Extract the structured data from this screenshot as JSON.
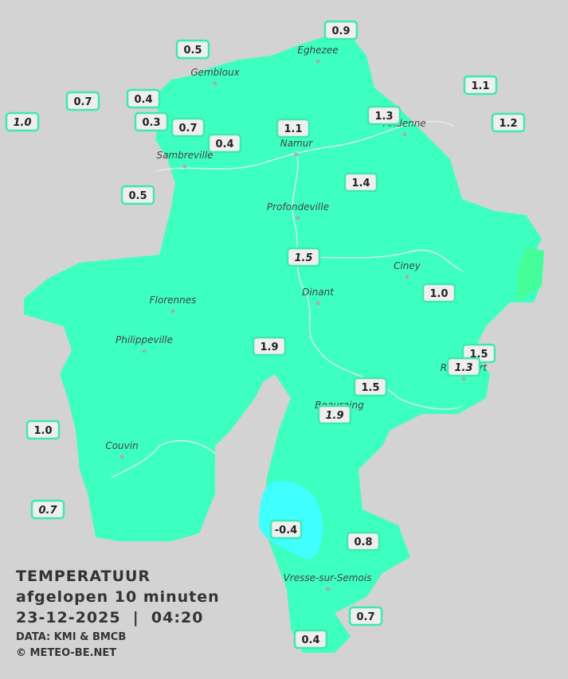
{
  "legend": {
    "title": "TEMPERATUUR",
    "subtitle": "afgelopen 10 minuten",
    "timestamp": "23-12-2025  |  04:20",
    "credits": [
      "DATA: KMI & BMCB",
      "© METEO-BE.NET"
    ]
  },
  "places": [
    "Eghezee",
    "Gembloux",
    "Andenne",
    "Namur",
    "Sambreville",
    "Profondeville",
    "Ciney",
    "Dinant",
    "Florennes",
    "Philippeville",
    "Rochefort",
    "Beauraing",
    "Couvin",
    "Vresse-sur-Semois"
  ],
  "readings": [
    {
      "text": "0.9",
      "italic": false
    },
    {
      "text": "0.5",
      "italic": false
    },
    {
      "text": "1.1",
      "italic": false
    },
    {
      "text": "0.7",
      "italic": false
    },
    {
      "text": "0.4",
      "italic": false
    },
    {
      "text": "1.3",
      "italic": false
    },
    {
      "text": "1.0",
      "italic": true
    },
    {
      "text": "0.3",
      "italic": false
    },
    {
      "text": "0.7",
      "italic": false
    },
    {
      "text": "1.1",
      "italic": false
    },
    {
      "text": "1.2",
      "italic": false
    },
    {
      "text": "0.4",
      "italic": false
    },
    {
      "text": "0.5",
      "italic": false
    },
    {
      "text": "1.4",
      "italic": false
    },
    {
      "text": "1.5",
      "italic": true
    },
    {
      "text": "1.0",
      "italic": false
    },
    {
      "text": "1.9",
      "italic": false
    },
    {
      "text": "1.5",
      "italic": false
    },
    {
      "text": "1.3",
      "italic": true
    },
    {
      "text": "1.5",
      "italic": false
    },
    {
      "text": "1.9",
      "italic": true
    },
    {
      "text": "1.0",
      "italic": false
    },
    {
      "text": "0.7",
      "italic": true
    },
    {
      "text": "-0.4",
      "italic": false
    },
    {
      "text": "0.8",
      "italic": false
    },
    {
      "text": "0.7",
      "italic": false
    },
    {
      "text": "0.4",
      "italic": false
    }
  ]
}
